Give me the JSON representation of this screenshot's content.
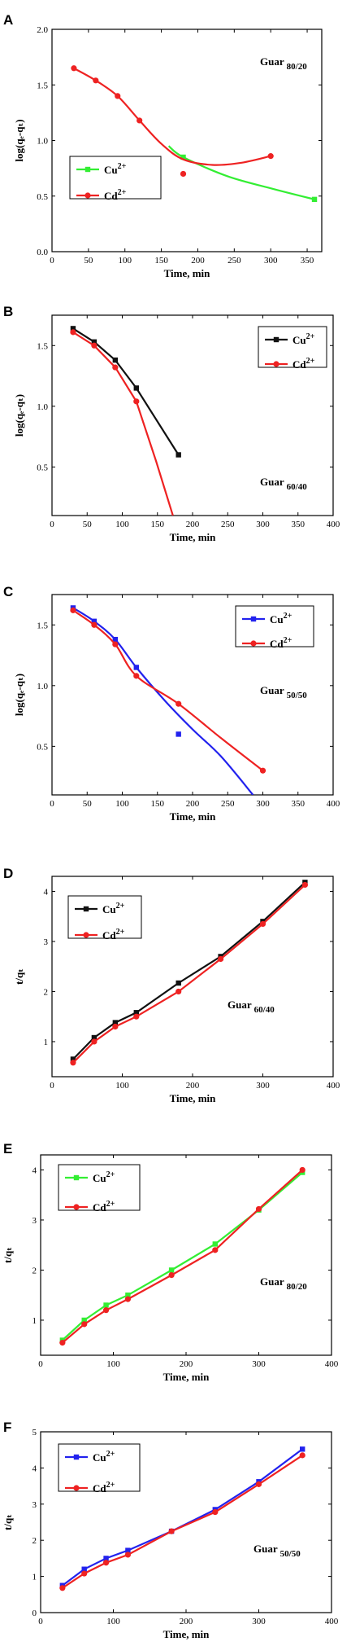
{
  "chart_data": [
    {
      "panel": "A",
      "type": "line",
      "xlabel": "Time, min",
      "ylabel": "log(qₑ-qₜ)",
      "xlim": [
        0,
        370
      ],
      "ylim": [
        0.0,
        2.0
      ],
      "xticks": [
        0,
        50,
        100,
        150,
        200,
        250,
        300,
        350
      ],
      "yticks": [
        0.0,
        0.5,
        1.0,
        1.5,
        2.0
      ],
      "annotation": {
        "main": "Guar",
        "sub": "80/20"
      },
      "legend": {
        "placement": "middle-left",
        "items": [
          {
            "base": "Cu",
            "sup": "2+"
          },
          {
            "base": "Cd",
            "sup": "2+"
          }
        ]
      },
      "series": [
        {
          "name": "Cu2+",
          "color": "#33ee33",
          "marker": "square",
          "smooth": true,
          "points": [
            [
              180,
              0.85
            ],
            [
              360,
              0.47
            ]
          ],
          "line": [
            [
              160,
              0.95
            ],
            [
              180,
              0.85
            ],
            [
              240,
              0.68
            ],
            [
              300,
              0.57
            ],
            [
              360,
              0.47
            ]
          ]
        },
        {
          "name": "Cd2+",
          "color": "#ee2222",
          "marker": "circle",
          "smooth": true,
          "points": [
            [
              30,
              1.65
            ],
            [
              60,
              1.54
            ],
            [
              90,
              1.4
            ],
            [
              120,
              1.18
            ],
            [
              180,
              0.7
            ],
            [
              300,
              0.86
            ]
          ],
          "line": [
            [
              30,
              1.65
            ],
            [
              60,
              1.54
            ],
            [
              90,
              1.4
            ],
            [
              120,
              1.18
            ],
            [
              150,
              0.97
            ],
            [
              180,
              0.83
            ],
            [
              220,
              0.78
            ],
            [
              260,
              0.8
            ],
            [
              300,
              0.86
            ]
          ]
        }
      ]
    },
    {
      "panel": "B",
      "type": "line",
      "xlabel": "Time, min",
      "ylabel": "log(qₑ-qₜ)",
      "xlim": [
        0,
        400
      ],
      "ylim": [
        0.1,
        1.75
      ],
      "xticks": [
        0,
        50,
        100,
        150,
        200,
        250,
        300,
        350,
        400
      ],
      "yticks": [
        0.5,
        1.0,
        1.5
      ],
      "annotation": {
        "main": "Guar",
        "sub": "60/40"
      },
      "legend": {
        "placement": "top-right",
        "items": [
          {
            "base": "Cu",
            "sup": "2+"
          },
          {
            "base": "Cd",
            "sup": "2+"
          }
        ]
      },
      "series": [
        {
          "name": "Cu2+",
          "color": "#111111",
          "marker": "square",
          "smooth": false,
          "points": [
            [
              30,
              1.64
            ],
            [
              60,
              1.53
            ],
            [
              90,
              1.38
            ],
            [
              120,
              1.15
            ],
            [
              180,
              0.6
            ]
          ],
          "line": [
            [
              30,
              1.64
            ],
            [
              60,
              1.53
            ],
            [
              90,
              1.38
            ],
            [
              120,
              1.15
            ],
            [
              180,
              0.6
            ]
          ]
        },
        {
          "name": "Cd2+",
          "color": "#ee2222",
          "marker": "circle",
          "smooth": false,
          "points": [
            [
              30,
              1.61
            ],
            [
              60,
              1.5
            ],
            [
              90,
              1.32
            ],
            [
              120,
              1.04
            ]
          ],
          "line": [
            [
              30,
              1.61
            ],
            [
              60,
              1.5
            ],
            [
              90,
              1.32
            ],
            [
              120,
              1.04
            ],
            [
              148,
              0.55
            ],
            [
              172,
              0.1
            ]
          ]
        }
      ]
    },
    {
      "panel": "C",
      "type": "line",
      "xlabel": "Time, min",
      "ylabel": "log(qₑ-qₜ)",
      "xlim": [
        0,
        400
      ],
      "ylim": [
        0.1,
        1.75
      ],
      "xticks": [
        0,
        50,
        100,
        150,
        200,
        250,
        300,
        350,
        400
      ],
      "yticks": [
        0.5,
        1.0,
        1.5
      ],
      "annotation": {
        "main": "Guar",
        "sub": "50/50"
      },
      "legend": {
        "placement": "top-right",
        "items": [
          {
            "base": "Cu",
            "sup": "2+"
          },
          {
            "base": "Cd",
            "sup": "2+"
          }
        ]
      },
      "series": [
        {
          "name": "Cu2+",
          "color": "#2222ee",
          "marker": "square",
          "smooth": true,
          "points": [
            [
              30,
              1.64
            ],
            [
              60,
              1.53
            ],
            [
              90,
              1.38
            ],
            [
              120,
              1.15
            ],
            [
              180,
              0.6
            ]
          ],
          "line": [
            [
              30,
              1.64
            ],
            [
              60,
              1.53
            ],
            [
              90,
              1.38
            ],
            [
              120,
              1.15
            ],
            [
              160,
              0.88
            ],
            [
              200,
              0.64
            ],
            [
              240,
              0.42
            ],
            [
              286,
              0.1
            ]
          ]
        },
        {
          "name": "Cd2+",
          "color": "#ee2222",
          "marker": "circle",
          "smooth": true,
          "points": [
            [
              30,
              1.62
            ],
            [
              60,
              1.5
            ],
            [
              90,
              1.34
            ],
            [
              120,
              1.08
            ],
            [
              180,
              0.85
            ],
            [
              300,
              0.3
            ]
          ],
          "line": [
            [
              30,
              1.62
            ],
            [
              60,
              1.5
            ],
            [
              90,
              1.34
            ],
            [
              120,
              1.08
            ],
            [
              180,
              0.85
            ],
            [
              240,
              0.57
            ],
            [
              300,
              0.3
            ]
          ]
        }
      ]
    },
    {
      "panel": "D",
      "type": "line",
      "xlabel": "Time, min",
      "ylabel": "t/qₜ",
      "xlim": [
        0,
        400
      ],
      "ylim": [
        0.3,
        4.3
      ],
      "xticks": [
        0,
        100,
        200,
        300,
        400
      ],
      "yticks": [
        1,
        2,
        3,
        4
      ],
      "annotation": {
        "main": "Guar",
        "sub": "60/40"
      },
      "legend": {
        "placement": "top-left",
        "items": [
          {
            "base": "Cu",
            "sup": "2+"
          },
          {
            "base": "Cd",
            "sup": "2+"
          }
        ]
      },
      "series": [
        {
          "name": "Cu2+",
          "color": "#111111",
          "marker": "square",
          "smooth": false,
          "points": [
            [
              30,
              0.65
            ],
            [
              60,
              1.08
            ],
            [
              90,
              1.38
            ],
            [
              120,
              1.58
            ],
            [
              180,
              2.17
            ],
            [
              240,
              2.7
            ],
            [
              300,
              3.4
            ],
            [
              360,
              4.18
            ]
          ],
          "line": [
            [
              30,
              0.65
            ],
            [
              60,
              1.08
            ],
            [
              90,
              1.38
            ],
            [
              120,
              1.58
            ],
            [
              180,
              2.17
            ],
            [
              240,
              2.7
            ],
            [
              300,
              3.4
            ],
            [
              360,
              4.18
            ]
          ]
        },
        {
          "name": "Cd2+",
          "color": "#ee2222",
          "marker": "circle",
          "smooth": false,
          "points": [
            [
              30,
              0.58
            ],
            [
              60,
              1.0
            ],
            [
              90,
              1.3
            ],
            [
              120,
              1.5
            ],
            [
              180,
              2.0
            ],
            [
              240,
              2.65
            ],
            [
              300,
              3.35
            ],
            [
              360,
              4.13
            ]
          ],
          "line": [
            [
              30,
              0.58
            ],
            [
              60,
              1.0
            ],
            [
              90,
              1.3
            ],
            [
              120,
              1.5
            ],
            [
              180,
              2.0
            ],
            [
              240,
              2.65
            ],
            [
              300,
              3.35
            ],
            [
              360,
              4.13
            ]
          ]
        }
      ]
    },
    {
      "panel": "E",
      "type": "line",
      "xlabel": "Time, min",
      "ylabel": "t/qₜ",
      "xlim": [
        0,
        400
      ],
      "ylim": [
        0.3,
        4.3
      ],
      "xticks": [
        0,
        100,
        200,
        300,
        400
      ],
      "yticks": [
        1,
        2,
        3,
        4
      ],
      "annotation": {
        "main": "Guar",
        "sub": "80/20"
      },
      "legend": {
        "placement": "top-left",
        "items": [
          {
            "base": "Cu",
            "sup": "2+"
          },
          {
            "base": "Cd",
            "sup": "2+"
          }
        ]
      },
      "series": [
        {
          "name": "Cu2+",
          "color": "#33ee33",
          "marker": "square",
          "smooth": false,
          "points": [
            [
              30,
              0.6
            ],
            [
              60,
              1.0
            ],
            [
              90,
              1.3
            ],
            [
              120,
              1.5
            ],
            [
              180,
              2.0
            ],
            [
              240,
              2.52
            ],
            [
              300,
              3.2
            ],
            [
              360,
              3.95
            ]
          ],
          "line": [
            [
              30,
              0.6
            ],
            [
              60,
              1.0
            ],
            [
              90,
              1.3
            ],
            [
              120,
              1.5
            ],
            [
              180,
              2.0
            ],
            [
              240,
              2.52
            ],
            [
              300,
              3.2
            ],
            [
              360,
              3.95
            ]
          ]
        },
        {
          "name": "Cd2+",
          "color": "#ee2222",
          "marker": "circle",
          "smooth": false,
          "points": [
            [
              30,
              0.55
            ],
            [
              60,
              0.92
            ],
            [
              90,
              1.2
            ],
            [
              120,
              1.42
            ],
            [
              180,
              1.9
            ],
            [
              240,
              2.4
            ],
            [
              300,
              3.22
            ],
            [
              360,
              4.0
            ]
          ],
          "line": [
            [
              30,
              0.55
            ],
            [
              60,
              0.92
            ],
            [
              90,
              1.2
            ],
            [
              120,
              1.42
            ],
            [
              180,
              1.9
            ],
            [
              240,
              2.4
            ],
            [
              300,
              3.22
            ],
            [
              360,
              4.0
            ]
          ]
        }
      ]
    },
    {
      "panel": "F",
      "type": "line",
      "xlabel": "Time, min",
      "ylabel": "t/qₜ",
      "xlim": [
        0,
        400
      ],
      "ylim": [
        0.0,
        5.0
      ],
      "xticks": [
        0,
        100,
        200,
        300,
        400
      ],
      "yticks": [
        0,
        1,
        2,
        3,
        4,
        5
      ],
      "annotation": {
        "main": "Guar",
        "sub": "50/50"
      },
      "legend": {
        "placement": "top-left",
        "items": [
          {
            "base": "Cu",
            "sup": "2+"
          },
          {
            "base": "Cd",
            "sup": "2+"
          }
        ]
      },
      "series": [
        {
          "name": "Cu2+",
          "color": "#2222ee",
          "marker": "square",
          "smooth": false,
          "points": [
            [
              30,
              0.75
            ],
            [
              60,
              1.2
            ],
            [
              90,
              1.5
            ],
            [
              120,
              1.72
            ],
            [
              180,
              2.25
            ],
            [
              240,
              2.85
            ],
            [
              300,
              3.62
            ],
            [
              360,
              4.52
            ]
          ],
          "line": [
            [
              30,
              0.75
            ],
            [
              60,
              1.2
            ],
            [
              90,
              1.5
            ],
            [
              120,
              1.72
            ],
            [
              180,
              2.25
            ],
            [
              240,
              2.85
            ],
            [
              300,
              3.62
            ],
            [
              360,
              4.52
            ]
          ]
        },
        {
          "name": "Cd2+",
          "color": "#ee2222",
          "marker": "circle",
          "smooth": false,
          "points": [
            [
              30,
              0.68
            ],
            [
              60,
              1.08
            ],
            [
              90,
              1.38
            ],
            [
              120,
              1.6
            ],
            [
              180,
              2.25
            ],
            [
              240,
              2.78
            ],
            [
              300,
              3.55
            ],
            [
              360,
              4.35
            ]
          ],
          "line": [
            [
              30,
              0.68
            ],
            [
              60,
              1.08
            ],
            [
              90,
              1.38
            ],
            [
              120,
              1.6
            ],
            [
              180,
              2.25
            ],
            [
              240,
              2.78
            ],
            [
              300,
              3.55
            ],
            [
              360,
              4.35
            ]
          ]
        }
      ]
    }
  ]
}
